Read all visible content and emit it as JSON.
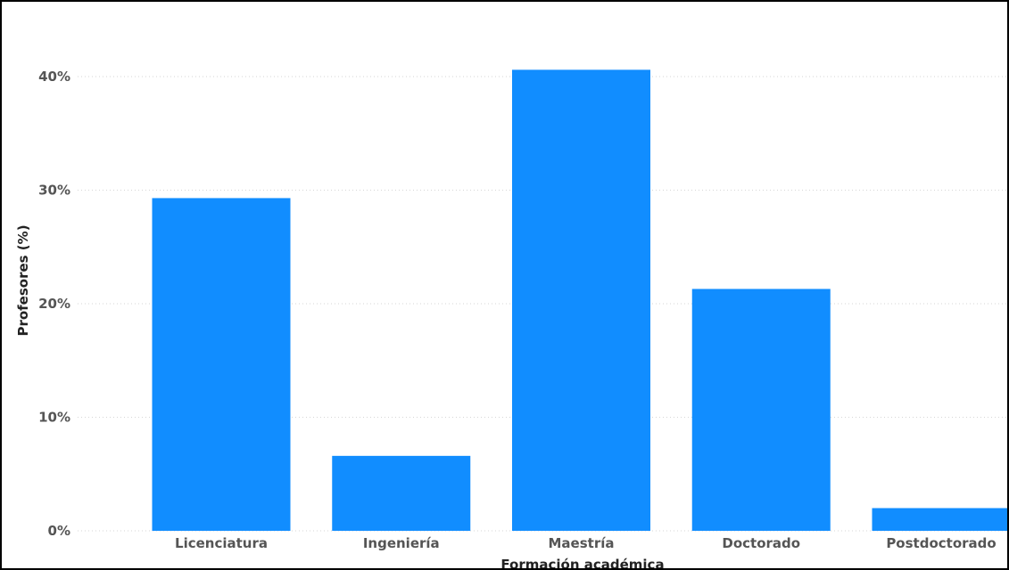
{
  "chart_data": {
    "type": "bar",
    "title": "",
    "xlabel": "Formación académica",
    "ylabel": "Profesores (%)",
    "categories": [
      "Licenciatura",
      "Ingeniería",
      "Maestría",
      "Doctorado",
      "Postdoctorado"
    ],
    "values": [
      29.3,
      6.6,
      40.6,
      21.3,
      2.0
    ],
    "value_unit": "%",
    "ylim": [
      0,
      44
    ],
    "yticks": [
      0,
      10,
      20,
      30,
      40
    ],
    "ytick_labels": [
      "0%",
      "10%",
      "20%",
      "30%",
      "40%"
    ],
    "grid": "horizontal dotted",
    "legend": "none",
    "bar_color": "#118DFF",
    "frame_color": "#000000"
  }
}
